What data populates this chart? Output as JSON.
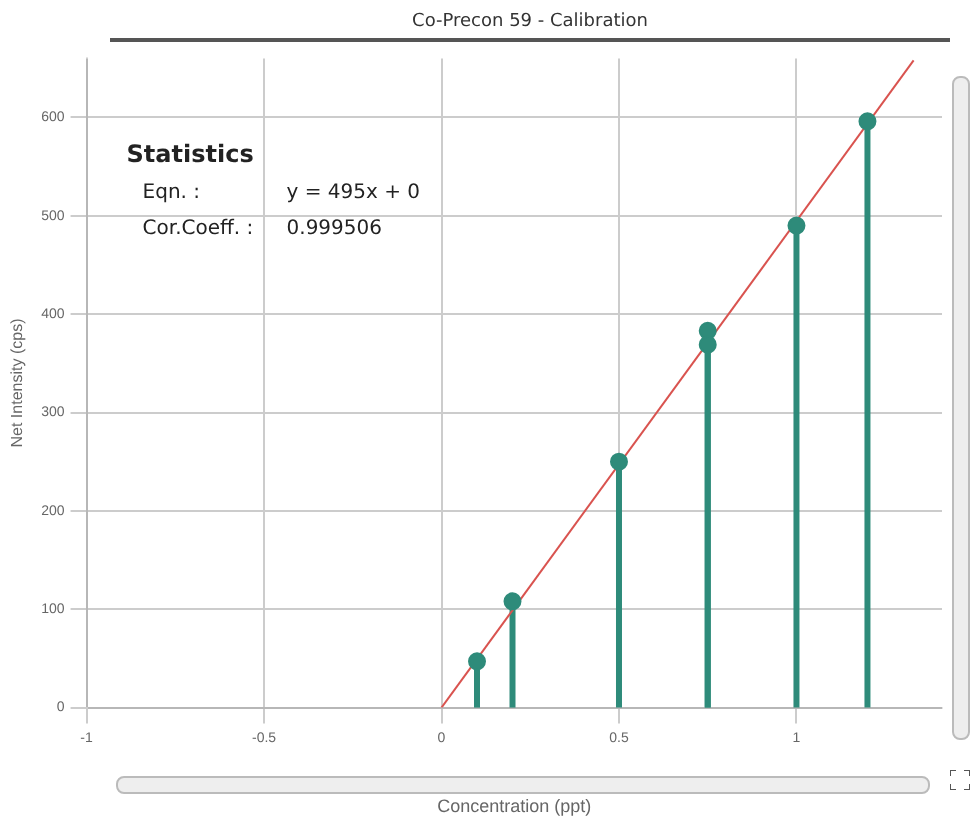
{
  "chart_data": {
    "type": "lollipop",
    "title": "Co-Precon 59  -  Calibration",
    "xlabel": "Concentration (ppt)",
    "ylabel": "Net Intensity (cps)",
    "xlim": [
      -1,
      1.41
    ],
    "xticks": [
      -1,
      -0.5,
      0,
      0.5,
      1
    ],
    "ylim": [
      0,
      660
    ],
    "yticks": [
      0,
      100,
      200,
      300,
      400,
      500,
      600
    ],
    "grid": true,
    "legend": false,
    "annotations": [
      "Statistics",
      "Eqn. :",
      "y = 495x + 0",
      "Cor.Coeff. :",
      "0.999506"
    ],
    "series": [
      {
        "marker": "circle",
        "color": "#2e8b7a",
        "x": [
          0.1,
          0.2,
          0.5,
          0.75,
          0.75,
          1,
          1.2
        ],
        "values": [
          47,
          108,
          250,
          383,
          369,
          490,
          596
        ]
      },
      {
        "type": "line",
        "color": "#d9534f",
        "x": [
          0,
          1.33
        ],
        "values": [
          0,
          658
        ]
      }
    ]
  }
}
